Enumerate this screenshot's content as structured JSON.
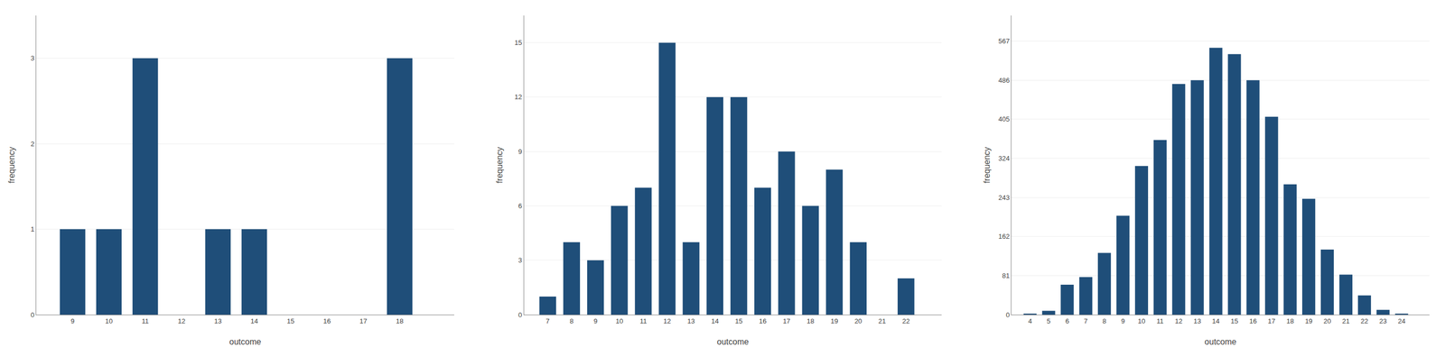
{
  "chart_data": [
    {
      "type": "bar",
      "x": [
        9,
        10,
        11,
        12,
        13,
        14,
        15,
        16,
        17,
        18
      ],
      "values": [
        1,
        1,
        3,
        0,
        1,
        1,
        0,
        0,
        0,
        3
      ],
      "xlabel": "outcome",
      "ylabel": "frequency",
      "xlim": [
        8.0,
        19.5
      ],
      "xticks": [
        9,
        10,
        11,
        12,
        13,
        14,
        15,
        16,
        17,
        18
      ],
      "ylim": [
        0,
        3.5
      ],
      "yticks": [
        0,
        1,
        2,
        3
      ],
      "color": "#1F4E79",
      "grid": true
    },
    {
      "type": "bar",
      "x": [
        7,
        8,
        9,
        10,
        11,
        12,
        13,
        14,
        15,
        16,
        17,
        18,
        19,
        20,
        21,
        22
      ],
      "values": [
        1,
        4,
        3,
        6,
        7,
        15,
        4,
        12,
        12,
        7,
        9,
        6,
        8,
        4,
        0,
        2
      ],
      "xlabel": "outcome",
      "ylabel": "frequency",
      "xlim": [
        6.0,
        23.5
      ],
      "xticks": [
        7,
        8,
        9,
        10,
        11,
        12,
        13,
        14,
        15,
        16,
        17,
        18,
        19,
        20,
        21,
        22
      ],
      "ylim": [
        0,
        16.5
      ],
      "yticks": [
        0,
        3,
        6,
        9,
        12,
        15
      ],
      "color": "#1F4E79",
      "grid": true
    },
    {
      "type": "bar",
      "x": [
        4,
        5,
        6,
        7,
        8,
        9,
        10,
        11,
        12,
        13,
        14,
        15,
        16,
        17,
        18,
        19,
        20,
        21,
        22,
        23,
        24
      ],
      "values": [
        2,
        8,
        62,
        78,
        128,
        205,
        308,
        362,
        478,
        486,
        553,
        540,
        486,
        410,
        270,
        240,
        135,
        83,
        40,
        10,
        2
      ],
      "xlabel": "outcome",
      "ylabel": "frequency",
      "xlim": [
        3.0,
        25.5
      ],
      "xticks": [
        4,
        5,
        6,
        7,
        8,
        9,
        10,
        11,
        12,
        13,
        14,
        15,
        16,
        17,
        18,
        19,
        20,
        21,
        22,
        23,
        24
      ],
      "ylim": [
        0,
        620
      ],
      "yticks": [
        0,
        81,
        162,
        243,
        324,
        405,
        486,
        567
      ],
      "color": "#1F4E79",
      "grid": true
    }
  ]
}
